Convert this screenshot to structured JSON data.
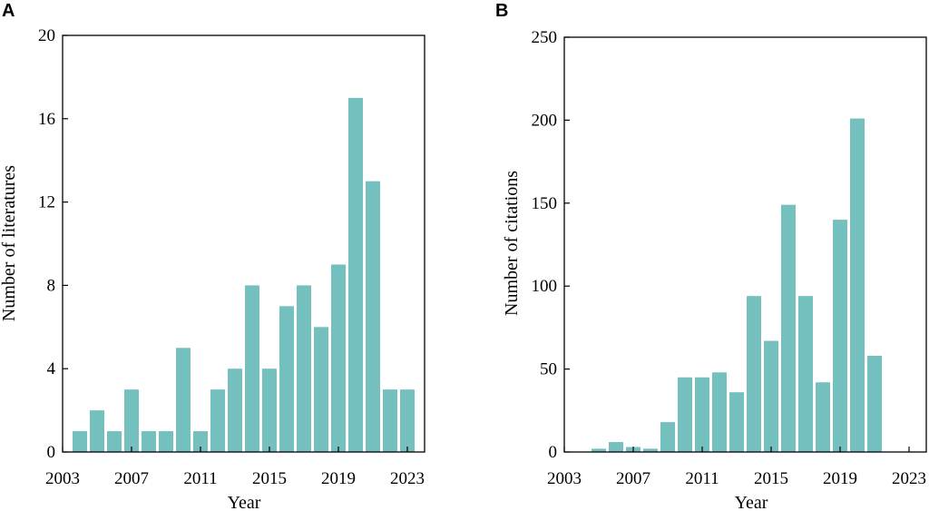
{
  "figure": {
    "bar_color": "#74c0bf",
    "axis_color": "#000000"
  },
  "chart_data": [
    {
      "panel_label": "A",
      "type": "bar",
      "title": "",
      "xlabel": "Year",
      "ylabel": "Number of literatures",
      "x": [
        2004,
        2005,
        2006,
        2007,
        2008,
        2009,
        2010,
        2011,
        2012,
        2013,
        2014,
        2015,
        2016,
        2017,
        2018,
        2019,
        2020,
        2021,
        2022,
        2023
      ],
      "values": [
        1,
        2,
        1,
        3,
        1,
        1,
        5,
        1,
        3,
        4,
        8,
        4,
        7,
        8,
        6,
        9,
        17,
        13,
        3,
        3
      ],
      "xlim": [
        2003,
        2024
      ],
      "ylim": [
        0,
        20
      ],
      "xticks": [
        2003,
        2007,
        2011,
        2015,
        2019,
        2023
      ],
      "yticks": [
        0,
        4,
        8,
        12,
        16,
        20
      ],
      "grid": false,
      "legend": "none"
    },
    {
      "panel_label": "B",
      "type": "bar",
      "title": "",
      "xlabel": "Year",
      "ylabel": "Number of citations",
      "x": [
        2004,
        2005,
        2006,
        2007,
        2008,
        2009,
        2010,
        2011,
        2012,
        2013,
        2014,
        2015,
        2016,
        2017,
        2018,
        2019,
        2020,
        2021,
        2022,
        2023
      ],
      "values": [
        0,
        2,
        6,
        3,
        2,
        18,
        45,
        45,
        48,
        36,
        94,
        67,
        149,
        94,
        42,
        140,
        201,
        58,
        0,
        0
      ],
      "xlim": [
        2003,
        2024
      ],
      "ylim": [
        0,
        250
      ],
      "xticks": [
        2003,
        2007,
        2011,
        2015,
        2019,
        2023
      ],
      "yticks": [
        0,
        50,
        100,
        150,
        200,
        250
      ],
      "grid": false,
      "legend": "none"
    }
  ]
}
